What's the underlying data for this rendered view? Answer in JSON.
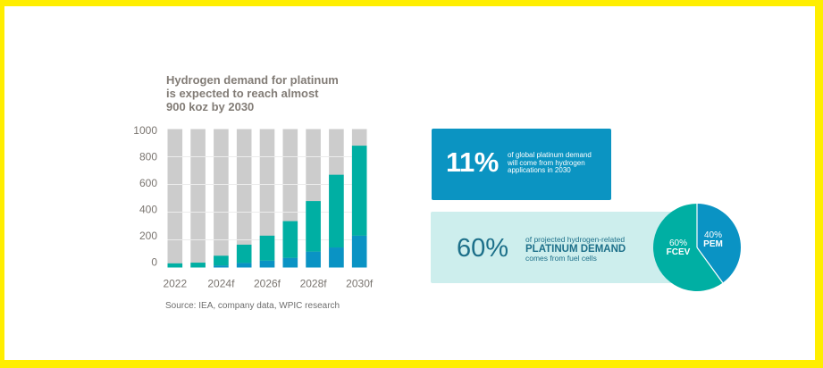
{
  "title_lines": [
    "Hydrogen demand for platinum",
    "is expected to reach almost",
    "900 koz by 2030"
  ],
  "source": "Source: IEA, company data, WPIC research",
  "colors": {
    "frame": "#ffee00",
    "bar_background": "#cccccc",
    "gridline": "#ececec",
    "teal": "#00afa3",
    "blue": "#0a93c4",
    "card_blue": "#0b94c2",
    "card_light": "#cdeeed",
    "dark_teal_text": "#1c6f89"
  },
  "chart_data": [
    {
      "type": "bar",
      "stacked": true,
      "title": "Hydrogen demand for platinum is expected to reach almost 900 koz by 2030",
      "xlabel": "",
      "ylabel": "",
      "x_tick_labels": [
        "2022",
        "",
        "2024f",
        "",
        "2026f",
        "",
        "2028f",
        "",
        "2030f"
      ],
      "ylim": [
        0,
        1000
      ],
      "y_ticks": [
        0,
        200,
        400,
        600,
        800,
        1000
      ],
      "y_tick_labels": [
        "0",
        "200",
        "400",
        "600",
        "800",
        "1000"
      ],
      "gridlines": [
        200,
        400,
        600,
        800
      ],
      "grid": true,
      "legend": "none",
      "background_bar_value": 1000,
      "series": [
        {
          "name": "",
          "color": "#0a93c4",
          "values": [
            0,
            0,
            15,
            33,
            50,
            70,
            115,
            145,
            230
          ]
        },
        {
          "name": "",
          "color": "#00afa3",
          "values": [
            30,
            35,
            70,
            132,
            180,
            265,
            365,
            525,
            650
          ]
        }
      ],
      "totals": [
        30,
        35,
        85,
        165,
        230,
        335,
        480,
        670,
        880
      ]
    },
    {
      "type": "pie",
      "title": "",
      "labels": [
        "PEM",
        "FCEV"
      ],
      "values": [
        40,
        60
      ],
      "value_labels": [
        "40%",
        "60%"
      ],
      "colors": [
        "#0a93c4",
        "#00afa3"
      ],
      "start": "top",
      "direction": "clockwise"
    }
  ],
  "stat_cards": [
    {
      "value": "11%",
      "lines": [
        "of global platinum demand",
        "will come from hydrogen",
        "applications in 2030"
      ]
    },
    {
      "value": "60%",
      "line1": "of projected hydrogen-related",
      "emphasis": "PLATINUM DEMAND",
      "line3": "comes from fuel cells"
    }
  ]
}
